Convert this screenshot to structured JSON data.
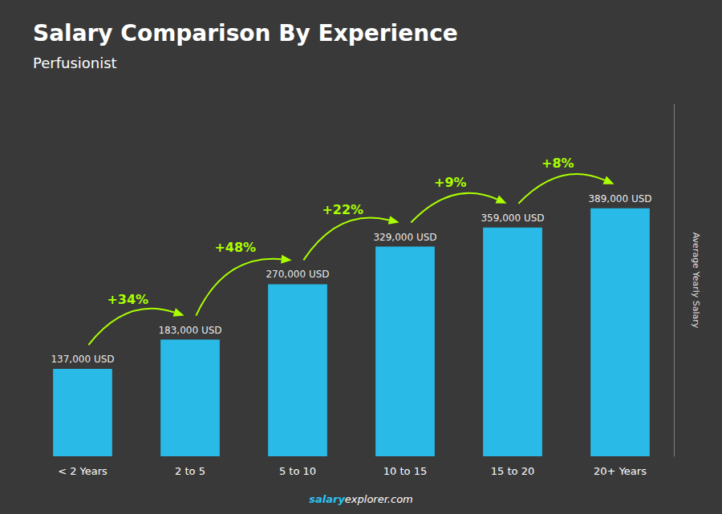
{
  "chart_data": {
    "type": "bar",
    "title": "Salary Comparison By Experience",
    "subtitle": "Perfusionist",
    "categories": [
      "< 2 Years",
      "2 to 5",
      "5 to 10",
      "10 to 15",
      "15 to 20",
      "20+ Years"
    ],
    "values": [
      137000,
      183000,
      270000,
      329000,
      359000,
      389000
    ],
    "value_labels": [
      "137,000 USD",
      "183,000 USD",
      "270,000 USD",
      "329,000 USD",
      "359,000 USD",
      "389,000 USD"
    ],
    "data_labels": true,
    "color": "#29C5F6",
    "ylabel": "Average Yearly Salary",
    "ylim": [
      0,
      552380
    ],
    "grid": false,
    "tick_labels": "x",
    "annotations": [
      {
        "text": "+34%",
        "color": "#AAFF00"
      },
      {
        "text": "+48%",
        "color": "#AAFF00"
      },
      {
        "text": "+22%",
        "color": "#AAFF00"
      },
      {
        "text": "+9%",
        "color": "#AAFF00"
      },
      {
        "text": "+8%",
        "color": "#AAFF00"
      }
    ],
    "watermark": {
      "bold": "salary",
      "normal": "explorer.com",
      "color": "#29C5F6"
    }
  }
}
